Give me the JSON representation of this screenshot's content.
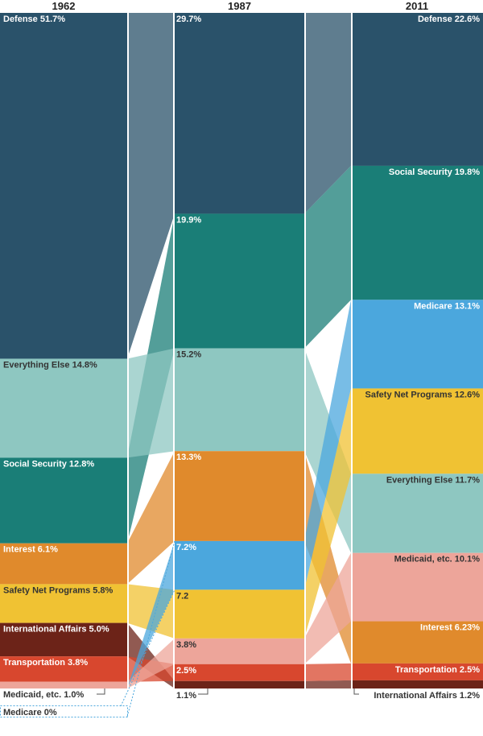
{
  "chart_data": {
    "type": "alluvial",
    "title": "",
    "unit": "% of federal spending",
    "categories": {
      "defense": {
        "name": "Defense",
        "color": "#2a526a"
      },
      "social_security": {
        "name": "Social Security",
        "color": "#1a7e77"
      },
      "everything_else": {
        "name": "Everything Else",
        "color": "#8ec7c1"
      },
      "interest": {
        "name": "Interest",
        "color": "#e08a2c"
      },
      "safety_net": {
        "name": "Safety Net Programs",
        "color": "#f0c233"
      },
      "international_affairs": {
        "name": "International Affairs",
        "color": "#6c2318"
      },
      "transportation": {
        "name": "Transportation",
        "color": "#d8472e"
      },
      "medicaid": {
        "name": "Medicaid, etc.",
        "color": "#eda59a"
      },
      "medicare": {
        "name": "Medicare",
        "color": "#4ba7dd"
      }
    },
    "columns": [
      {
        "year": "1962",
        "segments": [
          {
            "key": "defense",
            "value": 51.7,
            "label": "Defense 51.7%"
          },
          {
            "key": "everything_else",
            "value": 14.8,
            "label": "Everything Else 14.8%"
          },
          {
            "key": "social_security",
            "value": 12.8,
            "label": "Social Security 12.8%"
          },
          {
            "key": "interest",
            "value": 6.1,
            "label": "Interest 6.1%"
          },
          {
            "key": "safety_net",
            "value": 5.8,
            "label": "Safety Net Programs 5.8%"
          },
          {
            "key": "international_affairs",
            "value": 5.0,
            "label": "International Affairs 5.0%"
          },
          {
            "key": "transportation",
            "value": 3.8,
            "label": "Transportation 3.8%"
          },
          {
            "key": "medicaid",
            "value": 1.0,
            "label": "Medicaid, etc. 1.0%"
          },
          {
            "key": "medicare",
            "value": 0,
            "label": "Medicare 0%"
          }
        ]
      },
      {
        "year": "1987",
        "segments": [
          {
            "key": "defense",
            "value": 29.7,
            "label": "29.7%"
          },
          {
            "key": "social_security",
            "value": 19.9,
            "label": "19.9%"
          },
          {
            "key": "everything_else",
            "value": 15.2,
            "label": "15.2%"
          },
          {
            "key": "interest",
            "value": 13.3,
            "label": "13.3%"
          },
          {
            "key": "medicare",
            "value": 7.2,
            "label": "7.2%"
          },
          {
            "key": "safety_net",
            "value": 7.2,
            "label": "7.2"
          },
          {
            "key": "medicaid",
            "value": 3.8,
            "label": "3.8%"
          },
          {
            "key": "transportation",
            "value": 2.5,
            "label": "2.5%"
          },
          {
            "key": "international_affairs",
            "value": 1.1,
            "label": "1.1%"
          }
        ]
      },
      {
        "year": "2011",
        "segments": [
          {
            "key": "defense",
            "value": 22.6,
            "label": "Defense 22.6%"
          },
          {
            "key": "social_security",
            "value": 19.8,
            "label": "Social Security 19.8%"
          },
          {
            "key": "medicare",
            "value": 13.1,
            "label": "Medicare 13.1%"
          },
          {
            "key": "safety_net",
            "value": 12.6,
            "label": "Safety Net Programs 12.6%"
          },
          {
            "key": "everything_else",
            "value": 11.7,
            "label": "Everything Else 11.7%"
          },
          {
            "key": "medicaid",
            "value": 10.1,
            "label": "Medicaid, etc. 10.1%"
          },
          {
            "key": "interest",
            "value": 6.23,
            "label": "Interest 6.23%"
          },
          {
            "key": "transportation",
            "value": 2.5,
            "label": "Transportation 2.5%"
          },
          {
            "key": "international_affairs",
            "value": 1.2,
            "label": "International Affairs 1.2%"
          }
        ]
      }
    ]
  }
}
